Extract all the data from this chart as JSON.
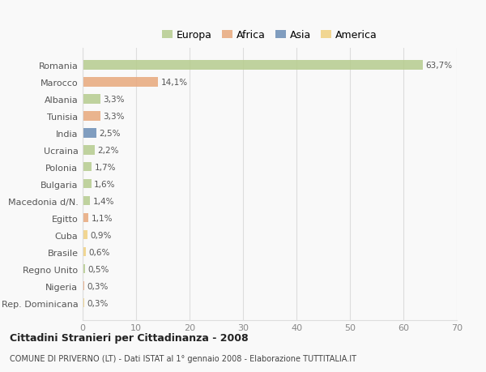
{
  "countries": [
    "Romania",
    "Marocco",
    "Albania",
    "Tunisia",
    "India",
    "Ucraina",
    "Polonia",
    "Bulgaria",
    "Macedonia d/N.",
    "Egitto",
    "Cuba",
    "Brasile",
    "Regno Unito",
    "Nigeria",
    "Rep. Dominicana"
  ],
  "values": [
    63.7,
    14.1,
    3.3,
    3.3,
    2.5,
    2.2,
    1.7,
    1.6,
    1.4,
    1.1,
    0.9,
    0.6,
    0.5,
    0.3,
    0.3
  ],
  "labels": [
    "63,7%",
    "14,1%",
    "3,3%",
    "3,3%",
    "2,5%",
    "2,2%",
    "1,7%",
    "1,6%",
    "1,4%",
    "1,1%",
    "0,9%",
    "0,6%",
    "0,5%",
    "0,3%",
    "0,3%"
  ],
  "colors": [
    "#b5cc8e",
    "#e8a87c",
    "#b5cc8e",
    "#e8a87c",
    "#6b8db5",
    "#b5cc8e",
    "#b5cc8e",
    "#b5cc8e",
    "#b5cc8e",
    "#e8a87c",
    "#f0d080",
    "#f0d080",
    "#b5cc8e",
    "#e8a87c",
    "#f0d080"
  ],
  "legend_labels": [
    "Europa",
    "Africa",
    "Asia",
    "America"
  ],
  "legend_colors": [
    "#b5cc8e",
    "#e8a87c",
    "#6b8db5",
    "#f0d080"
  ],
  "title": "Cittadini Stranieri per Cittadinanza - 2008",
  "subtitle": "COMUNE DI PRIVERNO (LT) - Dati ISTAT al 1° gennaio 2008 - Elaborazione TUTTITALIA.IT",
  "xlim": [
    0,
    70
  ],
  "xticks": [
    0,
    10,
    20,
    30,
    40,
    50,
    60,
    70
  ],
  "bg_color": "#f9f9f9",
  "grid_color": "#dddddd"
}
